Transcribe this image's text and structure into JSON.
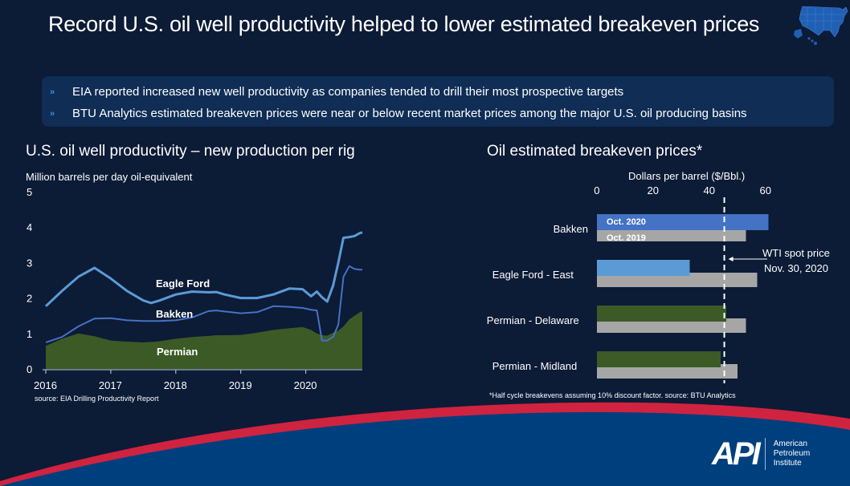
{
  "slide": {
    "title": "Record U.S. oil well productivity helped to lower estimated breakeven prices",
    "map_icon": "us-map-icon",
    "bullets": [
      {
        "icon": "chevron-right-icon",
        "text": "EIA reported increased new well productivity as companies tended to drill their most prospective targets"
      },
      {
        "icon": "chevron-right-icon",
        "text": "BTU Analytics estimated breakeven prices were near or below recent market prices among the major U.S. oil producing basins"
      }
    ],
    "logo": {
      "mark": "API",
      "line1": "American",
      "line2": "Petroleum",
      "line3": "Institute"
    }
  },
  "colors": {
    "background": "#0c1b36",
    "bullet_box": "#0f2d55",
    "eagle_ford": "#5b9bd5",
    "bakken": "#4472c4",
    "permian": "#3b5a26",
    "oct2019": "#a6a6a6",
    "oct2020_bakken": "#4472c4",
    "oct2020_eagle_ford": "#5b9bd5",
    "oct2020_permian": "#3b5a26",
    "footer_red": "#cf2340",
    "footer_blue": "#003f7d"
  },
  "chart_data": [
    {
      "type": "line",
      "title": "U.S. oil well productivity – new production per rig",
      "ylabel": "Million barrels per day oil-equivalent",
      "xlabel": "",
      "ylim": [
        0,
        5
      ],
      "yticks": [
        "0",
        "1",
        "2",
        "3",
        "4",
        "5"
      ],
      "xticks": [
        "2016",
        "2017",
        "2018",
        "2019",
        "2020"
      ],
      "xlim": [
        2016.0,
        2020.87
      ],
      "grid": false,
      "source": "source:  EIA Drilling Productivity Report",
      "x": [
        2016.0,
        2016.25,
        2016.5,
        2016.75,
        2017.0,
        2017.25,
        2017.5,
        2017.62,
        2017.75,
        2018.0,
        2018.25,
        2018.5,
        2018.62,
        2018.75,
        2019.0,
        2019.25,
        2019.5,
        2019.75,
        2019.95,
        2020.08,
        2020.17,
        2020.25,
        2020.33,
        2020.42,
        2020.5,
        2020.58,
        2020.67,
        2020.75,
        2020.83,
        2020.87
      ],
      "series": [
        {
          "name": "Eagle Ford",
          "label": "Eagle Ford",
          "style": "line",
          "values": [
            1.77,
            2.2,
            2.6,
            2.85,
            2.55,
            2.2,
            1.93,
            1.86,
            1.93,
            2.1,
            2.18,
            2.16,
            2.17,
            2.1,
            2.0,
            2.0,
            2.1,
            2.27,
            2.25,
            2.05,
            2.18,
            2.02,
            1.9,
            2.35,
            3.0,
            3.7,
            3.72,
            3.75,
            3.83,
            3.85
          ]
        },
        {
          "name": "Bakken",
          "label": "Bakken",
          "style": "line",
          "values": [
            0.75,
            0.9,
            1.2,
            1.42,
            1.43,
            1.37,
            1.35,
            1.35,
            1.35,
            1.37,
            1.45,
            1.63,
            1.65,
            1.62,
            1.57,
            1.6,
            1.77,
            1.75,
            1.72,
            1.67,
            1.65,
            0.8,
            0.8,
            0.9,
            1.25,
            2.6,
            2.9,
            2.82,
            2.8,
            2.8
          ]
        },
        {
          "name": "Permian",
          "label": "Permian",
          "style": "area",
          "values": [
            0.65,
            0.85,
            1.0,
            0.92,
            0.8,
            0.77,
            0.75,
            0.76,
            0.78,
            0.85,
            0.9,
            0.93,
            0.95,
            0.95,
            0.96,
            1.02,
            1.1,
            1.15,
            1.18,
            1.1,
            1.0,
            0.95,
            0.94,
            1.02,
            1.08,
            1.2,
            1.4,
            1.5,
            1.6,
            1.62
          ]
        }
      ]
    },
    {
      "type": "bar",
      "orientation": "horizontal",
      "title": "Oil estimated breakeven prices*",
      "xlabel": "Dollars per barrel ($/Bbl.)",
      "xlim": [
        0,
        60
      ],
      "xticks": [
        "0",
        "20",
        "40",
        "60"
      ],
      "grid": false,
      "categories": [
        "Bakken",
        "Eagle Ford - East",
        "Permian - Delaware",
        "Permian - Midland"
      ],
      "series": [
        {
          "name": "Oct. 2020",
          "values": [
            61,
            33,
            46,
            44
          ]
        },
        {
          "name": "Oct. 2019",
          "values": [
            53,
            57,
            53,
            50
          ]
        }
      ],
      "reference_line": {
        "value": 45.3,
        "label_line1": "WTI spot price",
        "label_line2": "Nov. 30, 2020",
        "style": "dashed"
      },
      "footnote": "*Half cycle breakevens assuming 10% discount factor.   source:  BTU Analytics"
    }
  ]
}
